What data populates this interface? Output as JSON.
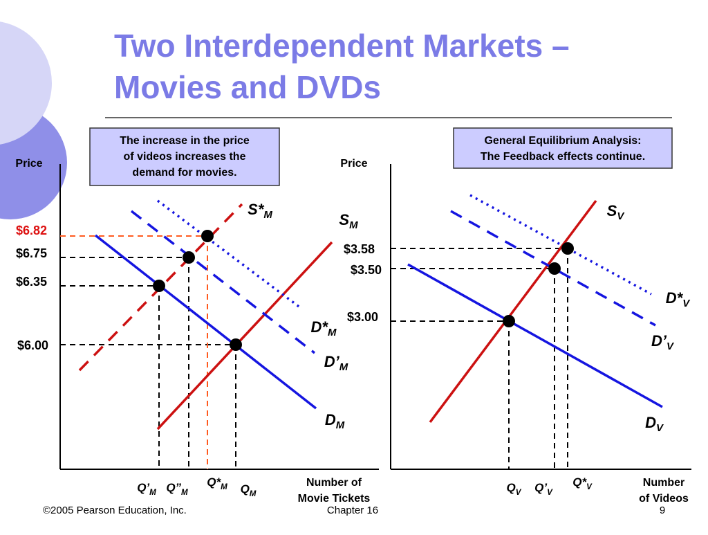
{
  "title": [
    "Two Interdependent Markets –",
    "Movies and DVDs"
  ],
  "left_panel": {
    "note": [
      "The increase in the price",
      "of videos increases the",
      "demand for movies."
    ],
    "y_label": "Price",
    "x_label": [
      "Number of",
      "Movie Tickets"
    ],
    "prices": [
      "$6.82",
      "$6.75",
      "$6.35",
      "$6.00"
    ],
    "curves": [
      {
        "main": "S*",
        "sub": "M"
      },
      {
        "main": "S",
        "sub": "M"
      },
      {
        "main": "D*",
        "sub": "M"
      },
      {
        "main": "D’",
        "sub": "M"
      },
      {
        "main": "D",
        "sub": "M"
      }
    ],
    "quantities": [
      {
        "main": "Q’",
        "sub": "M"
      },
      {
        "main": "Q”",
        "sub": "M"
      },
      {
        "main": "Q*",
        "sub": "M"
      },
      {
        "main": "Q",
        "sub": "M"
      }
    ]
  },
  "right_panel": {
    "note": [
      "General Equilibrium Analysis:",
      "The Feedback effects continue."
    ],
    "y_label": "Price",
    "x_label": [
      "Number",
      "of Videos"
    ],
    "prices": [
      "$3.58",
      "$3.50",
      "$3.00"
    ],
    "curves": [
      {
        "main": "S",
        "sub": "V"
      },
      {
        "main": "D*",
        "sub": "V"
      },
      {
        "main": "D’",
        "sub": "V"
      },
      {
        "main": "D",
        "sub": "V"
      }
    ],
    "quantities": [
      {
        "main": "Q",
        "sub": "V"
      },
      {
        "main": "Q’",
        "sub": "V"
      },
      {
        "main": "Q*",
        "sub": "V"
      }
    ]
  },
  "footer": {
    "copyright": "©2005 Pearson Education, Inc.",
    "chapter": "Chapter 16",
    "page": "9"
  }
}
